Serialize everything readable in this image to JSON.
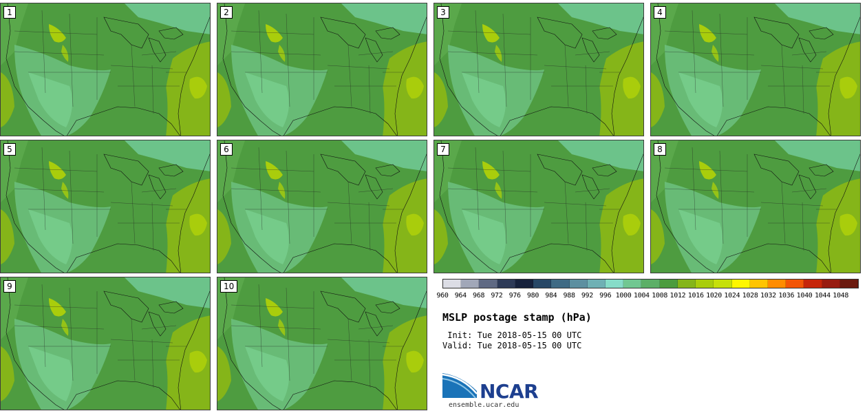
{
  "title": "MSLP postage stamp (hPa)",
  "init": " Init: Tue 2018-05-15 00 UTC",
  "valid": "Valid: Tue 2018-05-15 00 UTC",
  "logo": {
    "name": "NCAR",
    "url": "ensemble.ucar.edu"
  },
  "members": [
    "1",
    "2",
    "3",
    "4",
    "5",
    "6",
    "7",
    "8",
    "9",
    "10"
  ],
  "colorbar": {
    "ticks": [
      "960",
      "964",
      "968",
      "972",
      "976",
      "980",
      "984",
      "988",
      "992",
      "996",
      "1000",
      "1004",
      "1008",
      "1012",
      "1016",
      "1020",
      "1024",
      "1028",
      "1032",
      "1036",
      "1040",
      "1044",
      "1048"
    ],
    "colors": [
      "#dcdde5",
      "#a1a7b8",
      "#5f6983",
      "#2d3a57",
      "#16213c",
      "#274766",
      "#3f6a84",
      "#5d8fa0",
      "#6fb0b4",
      "#86dcc8",
      "#71c791",
      "#5caf67",
      "#4c9c3e",
      "#85b519",
      "#a9cd0c",
      "#c6e00a",
      "#fff700",
      "#ffc400",
      "#ff8c00",
      "#f25506",
      "#c6250a",
      "#981b10",
      "#6b1a0f"
    ]
  }
}
